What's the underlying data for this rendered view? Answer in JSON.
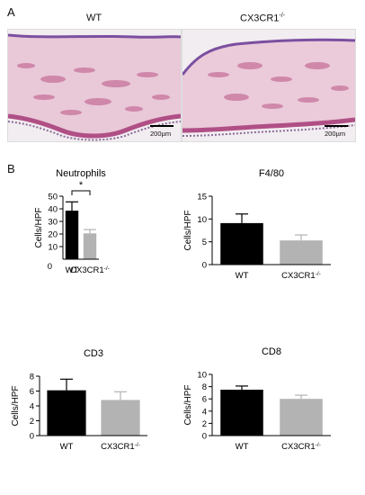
{
  "figure": {
    "panel_a": {
      "letter": "A",
      "images": [
        {
          "label": "WT",
          "scale_bar": "200µm"
        },
        {
          "label": "CX3CR1",
          "label_sup": "-/-",
          "scale_bar": "200µm"
        }
      ]
    },
    "panel_b": {
      "letter": "B"
    }
  },
  "chart_data": [
    {
      "type": "bar",
      "title": "Neutrophils",
      "ylabel": "Cells/HPF",
      "categories": [
        "WT",
        "CX3CR1-/-"
      ],
      "category_labels": [
        {
          "text": "WT",
          "sup": ""
        },
        {
          "text": "CX3CR1",
          "sup": "-/-"
        }
      ],
      "values": [
        38.5,
        20.5
      ],
      "errors": [
        7,
        3
      ],
      "colors": [
        "#000000",
        "#b3b3b3"
      ],
      "ylim": [
        0,
        50
      ],
      "yticks": [
        10,
        20,
        30,
        40,
        50
      ],
      "show_zero_label": true,
      "significance": {
        "text": "*",
        "between": [
          0,
          1
        ]
      }
    },
    {
      "type": "bar",
      "title": "F4/80",
      "ylabel": "Cells/HPF",
      "categories": [
        "WT",
        "CX3CR1-/-"
      ],
      "category_labels": [
        {
          "text": "WT",
          "sup": ""
        },
        {
          "text": "CX3CR1",
          "sup": "-/-"
        }
      ],
      "values": [
        9.1,
        5.3
      ],
      "errors": [
        2,
        1.2
      ],
      "colors": [
        "#000000",
        "#b3b3b3"
      ],
      "ylim": [
        0,
        15
      ],
      "yticks": [
        0,
        5,
        10,
        15
      ]
    },
    {
      "type": "bar",
      "title": "CD3",
      "ylabel": "Cells/HPF",
      "categories": [
        "WT",
        "CX3CR1-/-"
      ],
      "category_labels": [
        {
          "text": "WT",
          "sup": ""
        },
        {
          "text": "CX3CR1",
          "sup": "-/-"
        }
      ],
      "values": [
        6.1,
        4.8
      ],
      "errors": [
        1.5,
        1.1
      ],
      "colors": [
        "#000000",
        "#b3b3b3"
      ],
      "ylim": [
        0,
        8
      ],
      "yticks": [
        0,
        2,
        4,
        6,
        8
      ]
    },
    {
      "type": "bar",
      "title": "CD8",
      "ylabel": "Cells/HPF",
      "categories": [
        "WT",
        "CX3CR1-/-"
      ],
      "category_labels": [
        {
          "text": "WT",
          "sup": ""
        },
        {
          "text": "CX3CR1",
          "sup": "-/-"
        }
      ],
      "values": [
        7.5,
        6.0
      ],
      "errors": [
        0.6,
        0.6
      ],
      "colors": [
        "#000000",
        "#b3b3b3"
      ],
      "ylim": [
        0,
        10
      ],
      "yticks": [
        0,
        2,
        4,
        6,
        8,
        10
      ]
    }
  ]
}
